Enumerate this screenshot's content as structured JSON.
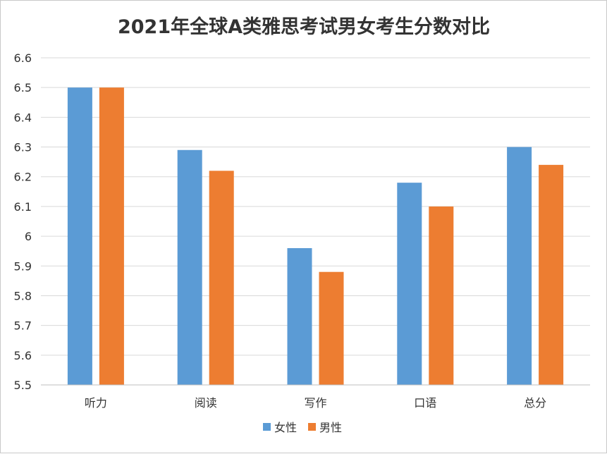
{
  "chart_data": {
    "type": "bar",
    "title": "2021年全球A类雅思考试男女考生分数对比",
    "categories": [
      "听力",
      "阅读",
      "写作",
      "口语",
      "总分"
    ],
    "series": [
      {
        "name": "女性",
        "color": "#5b9bd5",
        "values": [
          6.5,
          6.29,
          5.96,
          6.18,
          6.3
        ]
      },
      {
        "name": "男性",
        "color": "#ed7d31",
        "values": [
          6.5,
          6.22,
          5.88,
          6.1,
          6.24
        ]
      }
    ],
    "ylim": [
      5.5,
      6.6
    ],
    "yticks": [
      "5.5",
      "5.6",
      "5.7",
      "5.8",
      "5.9",
      "6",
      "6.1",
      "6.2",
      "6.3",
      "6.4",
      "6.5",
      "6.6"
    ],
    "ytick_values": [
      5.5,
      5.6,
      5.7,
      5.8,
      5.9,
      6.0,
      6.1,
      6.2,
      6.3,
      6.4,
      6.5,
      6.6
    ],
    "grid": true,
    "legend_position": "bottom"
  }
}
